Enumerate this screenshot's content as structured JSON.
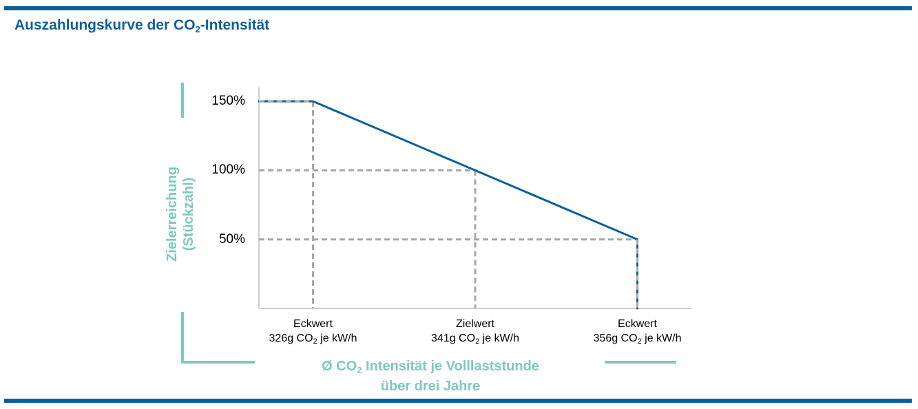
{
  "title_parts": {
    "before": "Auszahlungskurve der CO",
    "sub": "2",
    "after": "-Intensität"
  },
  "colors": {
    "brand": "#0d5f9c",
    "accent": "#7ec8be",
    "guide": "#a6a6a6",
    "line": "#0d5f9c"
  },
  "chart_data": {
    "type": "line",
    "y_axis": {
      "label_line1": "Zielerreichung",
      "label_line2": "(Stückzahl)",
      "ticks": [
        "150%",
        "100%",
        "50%"
      ],
      "tick_values": [
        150,
        100,
        50
      ],
      "range": [
        0,
        160
      ]
    },
    "x_axis": {
      "label_line1_before": "Ø CO",
      "label_line1_sub": "2",
      "label_line1_after": " Intensität je Volllaststunde",
      "label_line2": "über drei Jahre",
      "range": [
        321,
        361
      ]
    },
    "points": [
      {
        "x": 321,
        "y": 150
      },
      {
        "x": 326,
        "y": 150
      },
      {
        "x": 341,
        "y": 100
      },
      {
        "x": 356,
        "y": 50
      },
      {
        "x": 356,
        "y": 0
      }
    ],
    "categories": [
      {
        "name": "Eckwert",
        "value_before": "326g CO",
        "value_sub": "2",
        "value_after": " je kW/h",
        "x": 326,
        "y": 150
      },
      {
        "name": "Zielwert",
        "value_before": "341g CO",
        "value_sub": "2",
        "value_after": " je kW/h",
        "x": 341,
        "y": 100
      },
      {
        "name": "Eckwert",
        "value_before": "356g CO",
        "value_sub": "2",
        "value_after": " je kW/h",
        "x": 356,
        "y": 50
      }
    ],
    "grid": false,
    "legend": "none"
  }
}
